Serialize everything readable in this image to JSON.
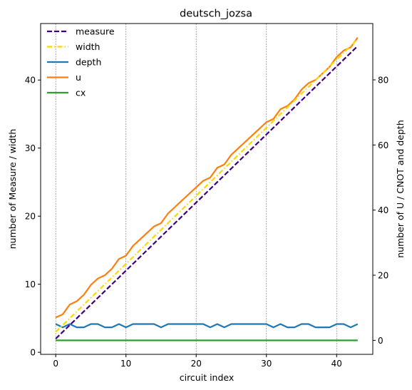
{
  "chart_data": {
    "type": "line",
    "title": "deutsch_jozsa",
    "xlabel": "circuit index",
    "ylabel_left": "number of Measure / width",
    "ylabel_right": "number of U / CNOT and depth",
    "xlim": [
      -2.15,
      45.15
    ],
    "ylim_left": [
      -0.3,
      48.3
    ],
    "ylim_right": [
      -4.3,
      97.3
    ],
    "xticks": [
      0,
      10,
      20,
      30,
      40
    ],
    "yticks_left": [
      0,
      10,
      20,
      30,
      40
    ],
    "yticks_right": [
      0,
      20,
      40,
      60,
      80
    ],
    "vertical_gridlines_at": [
      0,
      10,
      20,
      30,
      40
    ],
    "legend_position": "upper-left",
    "x": [
      0,
      1,
      2,
      3,
      4,
      5,
      6,
      7,
      8,
      9,
      10,
      11,
      12,
      13,
      14,
      15,
      16,
      17,
      18,
      19,
      20,
      21,
      22,
      23,
      24,
      25,
      26,
      27,
      28,
      29,
      30,
      31,
      32,
      33,
      34,
      35,
      36,
      37,
      38,
      39,
      40,
      41,
      42,
      43
    ],
    "series": [
      {
        "name": "measure",
        "axis": "left",
        "color": "#3f007d",
        "style": "dashed",
        "values": [
          2,
          3,
          4,
          5,
          6,
          7,
          8,
          9,
          10,
          11,
          12,
          13,
          14,
          15,
          16,
          17,
          18,
          19,
          20,
          21,
          22,
          23,
          24,
          25,
          26,
          27,
          28,
          29,
          30,
          31,
          32,
          33,
          34,
          35,
          36,
          37,
          38,
          39,
          40,
          41,
          42,
          43,
          44,
          45
        ]
      },
      {
        "name": "width",
        "axis": "left",
        "color": "#ffd700",
        "style": "dashdot",
        "values": [
          3,
          4,
          5,
          6,
          7,
          8,
          9,
          10,
          11,
          12,
          13,
          14,
          15,
          16,
          17,
          18,
          19,
          20,
          21,
          22,
          23,
          24,
          25,
          26,
          27,
          28,
          29,
          30,
          31,
          32,
          33,
          34,
          35,
          36,
          37,
          38,
          39,
          40,
          41,
          42,
          43,
          44,
          45,
          46
        ]
      },
      {
        "name": "depth",
        "axis": "right",
        "color": "#1f77b4",
        "style": "solid",
        "values": [
          5,
          4,
          5,
          4,
          4,
          5,
          5,
          4,
          4,
          5,
          4,
          5,
          5,
          5,
          5,
          4,
          5,
          5,
          5,
          5,
          5,
          5,
          4,
          5,
          4,
          5,
          5,
          5,
          5,
          5,
          5,
          4,
          5,
          4,
          4,
          5,
          5,
          4,
          4,
          4,
          5,
          5,
          4,
          5
        ]
      },
      {
        "name": "u",
        "axis": "right",
        "color": "#ff7f0e",
        "style": "solid",
        "values": [
          7,
          8,
          11,
          12,
          14,
          17,
          19,
          20,
          22,
          25,
          26,
          29,
          31,
          33,
          35,
          36,
          39,
          41,
          43,
          45,
          47,
          49,
          50,
          53,
          54,
          57,
          59,
          61,
          63,
          65,
          67,
          68,
          71,
          72,
          74,
          77,
          79,
          80,
          82,
          84,
          87,
          89,
          90,
          93
        ]
      },
      {
        "name": "cx",
        "axis": "right",
        "color": "#2ca02c",
        "style": "solid",
        "values": [
          0,
          0,
          0,
          0,
          0,
          0,
          0,
          0,
          0,
          0,
          0,
          0,
          0,
          0,
          0,
          0,
          0,
          0,
          0,
          0,
          0,
          0,
          0,
          0,
          0,
          0,
          0,
          0,
          0,
          0,
          0,
          0,
          0,
          0,
          0,
          0,
          0,
          0,
          0,
          0,
          0,
          0,
          0,
          0
        ]
      }
    ]
  }
}
